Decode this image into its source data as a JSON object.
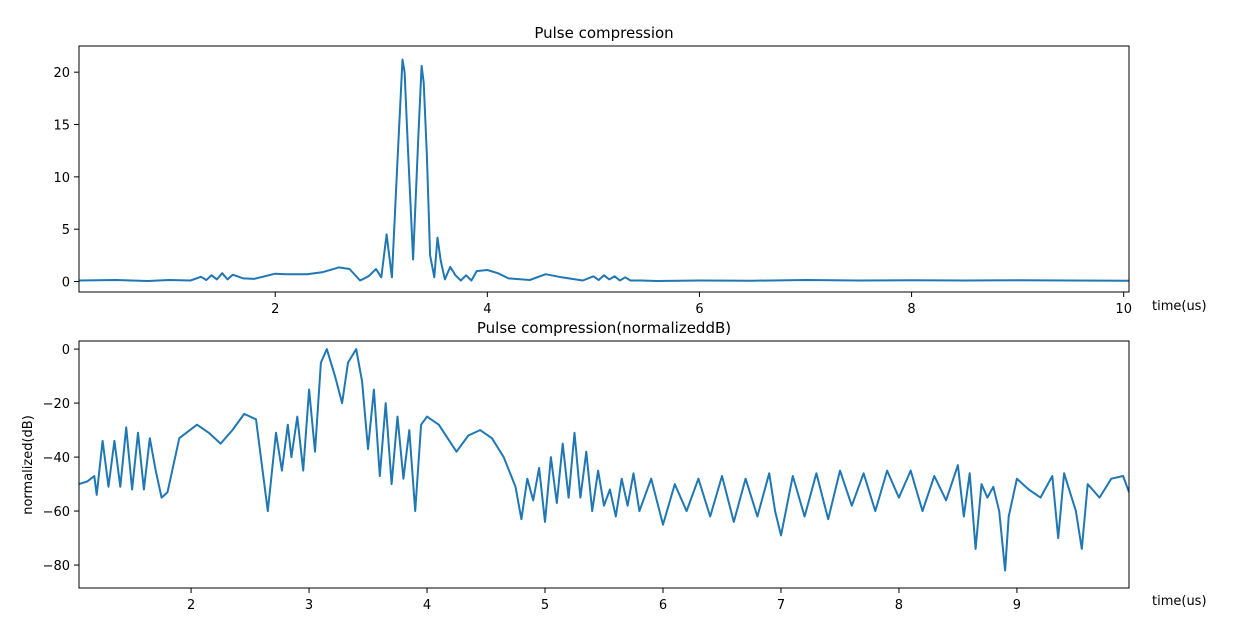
{
  "chart_data": [
    {
      "type": "line",
      "title": "Pulse compression",
      "xlabel": "time(us)",
      "ylabel": "",
      "xlim": [
        0.15,
        10.05
      ],
      "ylim": [
        -1.0,
        22.5
      ],
      "xticks": [
        2,
        4,
        6,
        8,
        10
      ],
      "xtick_labels": [
        "2",
        "4",
        "6",
        "8",
        "10"
      ],
      "yticks": [
        0,
        5,
        10,
        15,
        20
      ],
      "ytick_labels": [
        "0",
        "5",
        "10",
        "15",
        "20"
      ],
      "grid": false,
      "color": "#1f77b4",
      "x": [
        0.15,
        0.5,
        0.8,
        1.0,
        1.2,
        1.3,
        1.35,
        1.4,
        1.45,
        1.5,
        1.55,
        1.6,
        1.7,
        1.8,
        2.0,
        2.1,
        2.3,
        2.45,
        2.6,
        2.7,
        2.8,
        2.88,
        2.95,
        3.0,
        3.05,
        3.1,
        3.15,
        3.2,
        3.22,
        3.25,
        3.3,
        3.35,
        3.38,
        3.4,
        3.43,
        3.46,
        3.5,
        3.53,
        3.56,
        3.6,
        3.65,
        3.7,
        3.75,
        3.8,
        3.85,
        3.9,
        4.0,
        4.1,
        4.2,
        4.4,
        4.55,
        4.7,
        4.9,
        5.0,
        5.05,
        5.1,
        5.15,
        5.2,
        5.25,
        5.3,
        5.35,
        5.45,
        5.6,
        6.0,
        6.5,
        7.0,
        7.5,
        8.0,
        8.5,
        9.0,
        9.5,
        10.05
      ],
      "y": [
        0.1,
        0.15,
        0.05,
        0.15,
        0.1,
        0.45,
        0.15,
        0.6,
        0.2,
        0.8,
        0.2,
        0.65,
        0.3,
        0.25,
        0.75,
        0.7,
        0.7,
        0.9,
        1.35,
        1.2,
        0.1,
        0.5,
        1.2,
        0.4,
        4.5,
        0.4,
        11.0,
        21.2,
        20.0,
        13.0,
        2.1,
        14.0,
        20.6,
        19.0,
        12.0,
        2.5,
        0.4,
        4.2,
        2.0,
        0.2,
        1.4,
        0.6,
        0.1,
        0.6,
        0.1,
        1.0,
        1.1,
        0.8,
        0.3,
        0.15,
        0.7,
        0.4,
        0.1,
        0.5,
        0.15,
        0.6,
        0.2,
        0.5,
        0.1,
        0.4,
        0.1,
        0.1,
        0.05,
        0.1,
        0.08,
        0.15,
        0.1,
        0.12,
        0.1,
        0.12,
        0.1,
        0.08
      ]
    },
    {
      "type": "line",
      "title": "Pulse compression(normalizeddB)",
      "xlabel": "time(us)",
      "ylabel": "normalized(dB)",
      "xlim": [
        1.05,
        9.95
      ],
      "ylim": [
        -88.5,
        3.0
      ],
      "xticks": [
        2,
        3,
        4,
        5,
        6,
        7,
        8,
        9
      ],
      "xtick_labels": [
        "2",
        "3",
        "4",
        "5",
        "6",
        "7",
        "8",
        "9"
      ],
      "yticks": [
        0,
        -20,
        -40,
        -60,
        -80
      ],
      "ytick_labels": [
        "0",
        "−20",
        "−40",
        "−60",
        "−80"
      ],
      "grid": false,
      "color": "#1f77b4",
      "x": [
        1.05,
        1.12,
        1.18,
        1.2,
        1.25,
        1.3,
        1.35,
        1.4,
        1.45,
        1.5,
        1.55,
        1.6,
        1.65,
        1.7,
        1.75,
        1.8,
        1.9,
        2.05,
        2.15,
        2.25,
        2.35,
        2.45,
        2.55,
        2.65,
        2.72,
        2.77,
        2.82,
        2.85,
        2.9,
        2.95,
        3.0,
        3.05,
        3.1,
        3.15,
        3.22,
        3.28,
        3.33,
        3.4,
        3.45,
        3.5,
        3.55,
        3.6,
        3.65,
        3.7,
        3.75,
        3.8,
        3.85,
        3.9,
        3.95,
        4.0,
        4.1,
        4.25,
        4.35,
        4.45,
        4.55,
        4.65,
        4.75,
        4.8,
        4.85,
        4.9,
        4.95,
        5.0,
        5.05,
        5.1,
        5.15,
        5.2,
        5.25,
        5.3,
        5.35,
        5.4,
        5.45,
        5.5,
        5.55,
        5.6,
        5.65,
        5.7,
        5.75,
        5.8,
        5.9,
        6.0,
        6.1,
        6.2,
        6.3,
        6.4,
        6.5,
        6.6,
        6.7,
        6.8,
        6.9,
        6.95,
        7.0,
        7.1,
        7.2,
        7.3,
        7.4,
        7.5,
        7.6,
        7.7,
        7.8,
        7.9,
        8.0,
        8.1,
        8.2,
        8.3,
        8.4,
        8.5,
        8.55,
        8.6,
        8.65,
        8.7,
        8.75,
        8.8,
        8.85,
        8.9,
        8.93,
        9.0,
        9.1,
        9.2,
        9.3,
        9.35,
        9.4,
        9.5,
        9.55,
        9.6,
        9.7,
        9.8,
        9.9,
        9.95
      ],
      "y": [
        -50,
        -49,
        -47,
        -54,
        -34,
        -51,
        -34,
        -51,
        -29,
        -52,
        -31,
        -52,
        -33,
        -45,
        -55,
        -53,
        -33,
        -28,
        -31,
        -35,
        -30,
        -24,
        -26,
        -60,
        -31,
        -45,
        -28,
        -40,
        -25,
        -45,
        -15,
        -38,
        -5,
        0,
        -10,
        -20,
        -5,
        0,
        -12,
        -37,
        -15,
        -47,
        -20,
        -50,
        -25,
        -48,
        -30,
        -60,
        -28,
        -25,
        -28,
        -38,
        -32,
        -30,
        -33,
        -40,
        -51,
        -63,
        -48,
        -56,
        -44,
        -64,
        -40,
        -57,
        -35,
        -55,
        -31,
        -55,
        -38,
        -60,
        -45,
        -58,
        -52,
        -62,
        -48,
        -58,
        -46,
        -60,
        -48,
        -65,
        -50,
        -60,
        -48,
        -62,
        -47,
        -64,
        -48,
        -62,
        -46,
        -60,
        -69,
        -47,
        -62,
        -46,
        -63,
        -45,
        -58,
        -46,
        -60,
        -45,
        -55,
        -45,
        -60,
        -47,
        -56,
        -43,
        -62,
        -46,
        -74,
        -50,
        -55,
        -51,
        -60,
        -82,
        -62,
        -48,
        -52,
        -55,
        -47,
        -70,
        -46,
        -60,
        -74,
        -50,
        -55,
        -48,
        -47,
        -53
      ]
    }
  ]
}
